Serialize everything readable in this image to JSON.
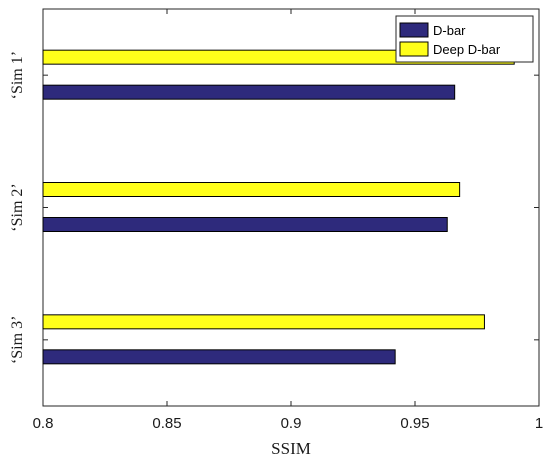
{
  "chart_data": {
    "type": "bar",
    "orientation": "horizontal",
    "categories": [
      "‘Sim 1’",
      "‘Sim 2’",
      "‘Sim 3’"
    ],
    "series": [
      {
        "name": "D-bar",
        "values": [
          0.966,
          0.963,
          0.942
        ]
      },
      {
        "name": "Deep D-bar",
        "values": [
          0.99,
          0.968,
          0.978
        ]
      }
    ],
    "xlabel": "SSIM",
    "ylabel": "",
    "xlim": [
      0.8,
      1.0
    ],
    "xticks": [
      "0.8",
      "0.85",
      "0.9",
      "0.95",
      "1"
    ],
    "grid": false,
    "legend_position": "top-right"
  },
  "colors": {
    "D-bar": "#2e2a7c",
    "Deep D-bar": "#ffff1a",
    "bar_edge": "#000000",
    "axis": "#262626"
  }
}
